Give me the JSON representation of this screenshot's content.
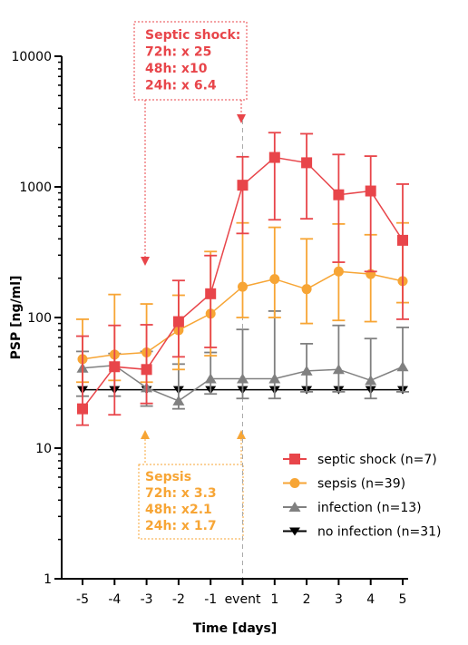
{
  "chart_data": {
    "type": "line",
    "y_scale": "log",
    "ylabel": "PSP [ng/ml]",
    "xlabel": "Time [days]",
    "ylim": [
      1,
      10000
    ],
    "y_ticks": [
      1,
      10,
      100,
      1000,
      10000
    ],
    "y_tick_labels": [
      "1",
      "10",
      "100",
      "1000",
      "10000"
    ],
    "x_tick_labels": [
      "-5",
      "-4",
      "-3",
      "-2",
      "-1",
      "event",
      "1",
      "2",
      "3",
      "4",
      "5"
    ],
    "event_index": 5,
    "series": [
      {
        "name": "septic shock (n=7)",
        "color": "#e8454a",
        "marker": "square",
        "values": [
          20,
          42,
          40,
          93,
          152,
          1030,
          1680,
          1530,
          870,
          930,
          390
        ],
        "err_upper": [
          72,
          87,
          88,
          192,
          298,
          1700,
          2600,
          2550,
          1770,
          1720,
          1050
        ],
        "err_lower": [
          15,
          18,
          22,
          50,
          59,
          440,
          560,
          570,
          265,
          225,
          97
        ]
      },
      {
        "name": "sepsis (n=39)",
        "color": "#f7a535",
        "marker": "circle",
        "values": [
          48,
          52,
          54,
          80,
          107,
          172,
          197,
          165,
          225,
          215,
          190
        ],
        "err_upper": [
          97,
          150,
          127,
          148,
          320,
          530,
          490,
          400,
          520,
          430,
          530
        ],
        "err_lower": [
          32,
          33,
          32,
          40,
          51,
          100,
          100,
          90,
          95,
          93,
          130
        ]
      },
      {
        "name": "infection (n=13)",
        "color": "#808080",
        "marker": "triangle-up",
        "values": [
          41,
          43,
          29,
          23,
          34,
          34,
          34,
          39,
          40,
          33,
          42
        ],
        "err_upper": [
          55,
          53,
          55,
          44,
          54,
          81,
          112,
          63,
          87,
          69,
          84
        ],
        "err_lower": [
          25,
          25,
          21,
          20,
          26,
          24,
          24,
          27,
          27,
          24,
          27
        ]
      },
      {
        "name": "no infection (n=31)",
        "color": "#000000",
        "marker": "triangle-down",
        "values": [
          28,
          28,
          28,
          28,
          28,
          28,
          28,
          28,
          28,
          28,
          28
        ],
        "err_upper": [
          28,
          28,
          28,
          28,
          28,
          28,
          28,
          28,
          28,
          28,
          28
        ],
        "err_lower": [
          28,
          28,
          28,
          28,
          28,
          28,
          28,
          28,
          28,
          28,
          28
        ]
      }
    ],
    "annotations": [
      {
        "color": "#e8454a",
        "lines": [
          "Septic shock:",
          "72h: x 25",
          "48h: x10",
          "24h: x 6.4"
        ]
      },
      {
        "color": "#f7a535",
        "lines": [
          "Sepsis",
          "72h: x 3.3",
          "48h: x2.1",
          "24h: x 1.7"
        ]
      }
    ],
    "legend_position": "bottom-right",
    "grid": false
  }
}
